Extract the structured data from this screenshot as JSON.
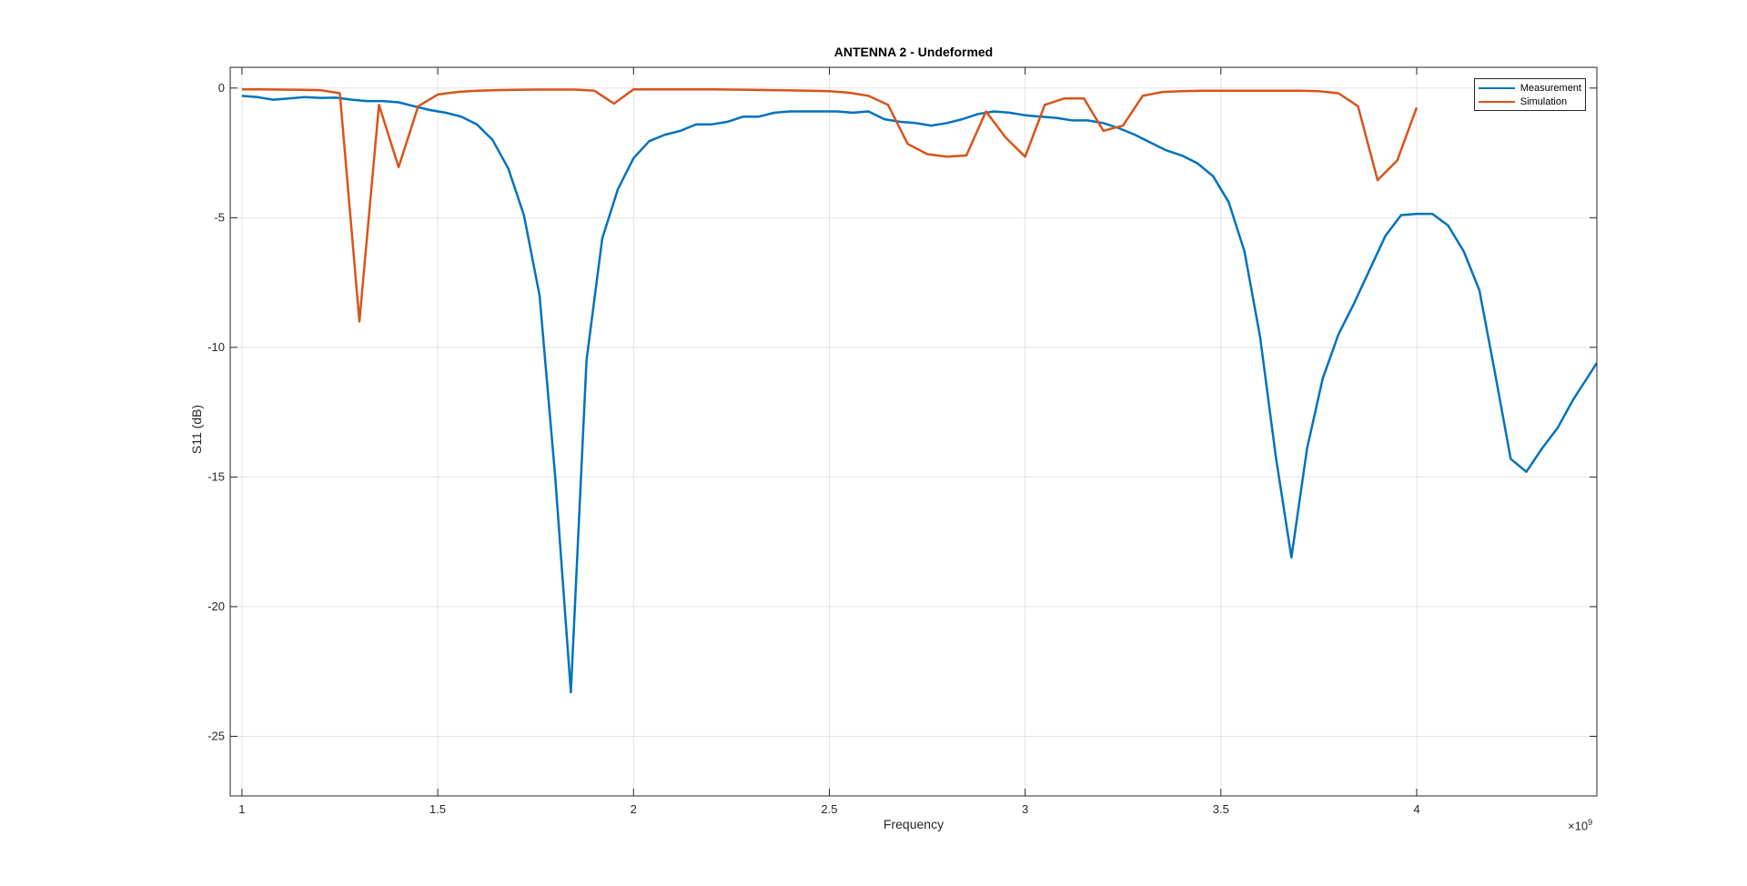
{
  "chart_data": {
    "type": "line",
    "title": "ANTENNA 2 - Undeformed",
    "xlabel": "Frequency",
    "ylabel": "S11 (dB)",
    "x_exponent_label": "×10",
    "x_exponent_power": "9",
    "xlim": [
      0.97,
      4.46
    ],
    "ylim": [
      -27.3,
      0.8
    ],
    "x_ticks": [
      1,
      1.5,
      2,
      2.5,
      3,
      3.5,
      4
    ],
    "x_tick_labels": [
      "1",
      "1.5",
      "2",
      "2.5",
      "3",
      "3.5",
      "4"
    ],
    "y_ticks": [
      0,
      -5,
      -10,
      -15,
      -20,
      -25
    ],
    "y_tick_labels": [
      "0",
      "-5",
      "-10",
      "-15",
      "-20",
      "-25"
    ],
    "grid": true,
    "legend_position": "top-right",
    "series": [
      {
        "name": "Measurement",
        "color": "#0072BD",
        "x": [
          1.0,
          1.04,
          1.08,
          1.12,
          1.16,
          1.2,
          1.24,
          1.28,
          1.32,
          1.36,
          1.4,
          1.44,
          1.48,
          1.52,
          1.56,
          1.6,
          1.64,
          1.68,
          1.72,
          1.76,
          1.8,
          1.84,
          1.88,
          1.92,
          1.96,
          2.0,
          2.04,
          2.08,
          2.12,
          2.16,
          2.2,
          2.24,
          2.28,
          2.32,
          2.36,
          2.4,
          2.44,
          2.48,
          2.52,
          2.56,
          2.6,
          2.64,
          2.68,
          2.72,
          2.76,
          2.8,
          2.84,
          2.88,
          2.92,
          2.96,
          3.0,
          3.04,
          3.08,
          3.12,
          3.16,
          3.2,
          3.24,
          3.28,
          3.32,
          3.36,
          3.4,
          3.44,
          3.48,
          3.52,
          3.56,
          3.6,
          3.64,
          3.68,
          3.72,
          3.76,
          3.8,
          3.84,
          3.88,
          3.92,
          3.96,
          4.0,
          4.04,
          4.08,
          4.12,
          4.16,
          4.2,
          4.24,
          4.28,
          4.32,
          4.36,
          4.4,
          4.46
        ],
        "y": [
          -0.3,
          -0.35,
          -0.45,
          -0.4,
          -0.35,
          -0.38,
          -0.37,
          -0.45,
          -0.5,
          -0.5,
          -0.55,
          -0.7,
          -0.85,
          -0.95,
          -1.1,
          -1.4,
          -2.0,
          -3.1,
          -4.9,
          -8.0,
          -15.0,
          -23.3,
          -10.5,
          -5.8,
          -3.9,
          -2.7,
          -2.05,
          -1.8,
          -1.65,
          -1.4,
          -1.4,
          -1.3,
          -1.1,
          -1.1,
          -0.95,
          -0.9,
          -0.9,
          -0.9,
          -0.9,
          -0.95,
          -0.9,
          -1.2,
          -1.3,
          -1.35,
          -1.45,
          -1.35,
          -1.2,
          -1.0,
          -0.9,
          -0.95,
          -1.05,
          -1.1,
          -1.15,
          -1.25,
          -1.25,
          -1.35,
          -1.55,
          -1.8,
          -2.1,
          -2.4,
          -2.6,
          -2.9,
          -3.4,
          -4.4,
          -6.3,
          -9.6,
          -14.2,
          -18.1,
          -13.9,
          -11.2,
          -9.5,
          -8.3,
          -7.0,
          -5.7,
          -4.9,
          -4.85,
          -4.85,
          -5.3,
          -6.3,
          -7.8,
          -11.0,
          -14.3,
          -14.8,
          -13.9,
          -13.1,
          -12.0,
          -10.6
        ]
      },
      {
        "name": "Simulation",
        "color": "#D95319",
        "x": [
          1.0,
          1.05,
          1.1,
          1.15,
          1.2,
          1.25,
          1.3,
          1.35,
          1.4,
          1.45,
          1.5,
          1.55,
          1.6,
          1.65,
          1.7,
          1.75,
          1.8,
          1.85,
          1.9,
          1.95,
          2.0,
          2.05,
          2.1,
          2.15,
          2.2,
          2.25,
          2.3,
          2.35,
          2.4,
          2.45,
          2.5,
          2.55,
          2.6,
          2.65,
          2.7,
          2.75,
          2.8,
          2.85,
          2.9,
          2.95,
          3.0,
          3.05,
          3.1,
          3.15,
          3.2,
          3.25,
          3.3,
          3.35,
          3.4,
          3.45,
          3.5,
          3.55,
          3.6,
          3.65,
          3.7,
          3.75,
          3.8,
          3.85,
          3.9,
          3.95,
          4.0
        ],
        "y": [
          -0.05,
          -0.05,
          -0.06,
          -0.07,
          -0.08,
          -0.2,
          -9.0,
          -0.65,
          -3.05,
          -0.7,
          -0.25,
          -0.15,
          -0.1,
          -0.08,
          -0.07,
          -0.06,
          -0.06,
          -0.06,
          -0.1,
          -0.6,
          -0.05,
          -0.05,
          -0.05,
          -0.05,
          -0.05,
          -0.06,
          -0.07,
          -0.08,
          -0.09,
          -0.1,
          -0.12,
          -0.18,
          -0.3,
          -0.65,
          -2.15,
          -2.55,
          -2.65,
          -2.6,
          -0.9,
          -1.9,
          -2.65,
          -0.65,
          -0.4,
          -0.4,
          -1.65,
          -1.45,
          -0.3,
          -0.15,
          -0.12,
          -0.1,
          -0.1,
          -0.1,
          -0.1,
          -0.1,
          -0.1,
          -0.12,
          -0.2,
          -0.7,
          -3.55,
          -2.8,
          -0.75
        ]
      }
    ]
  }
}
